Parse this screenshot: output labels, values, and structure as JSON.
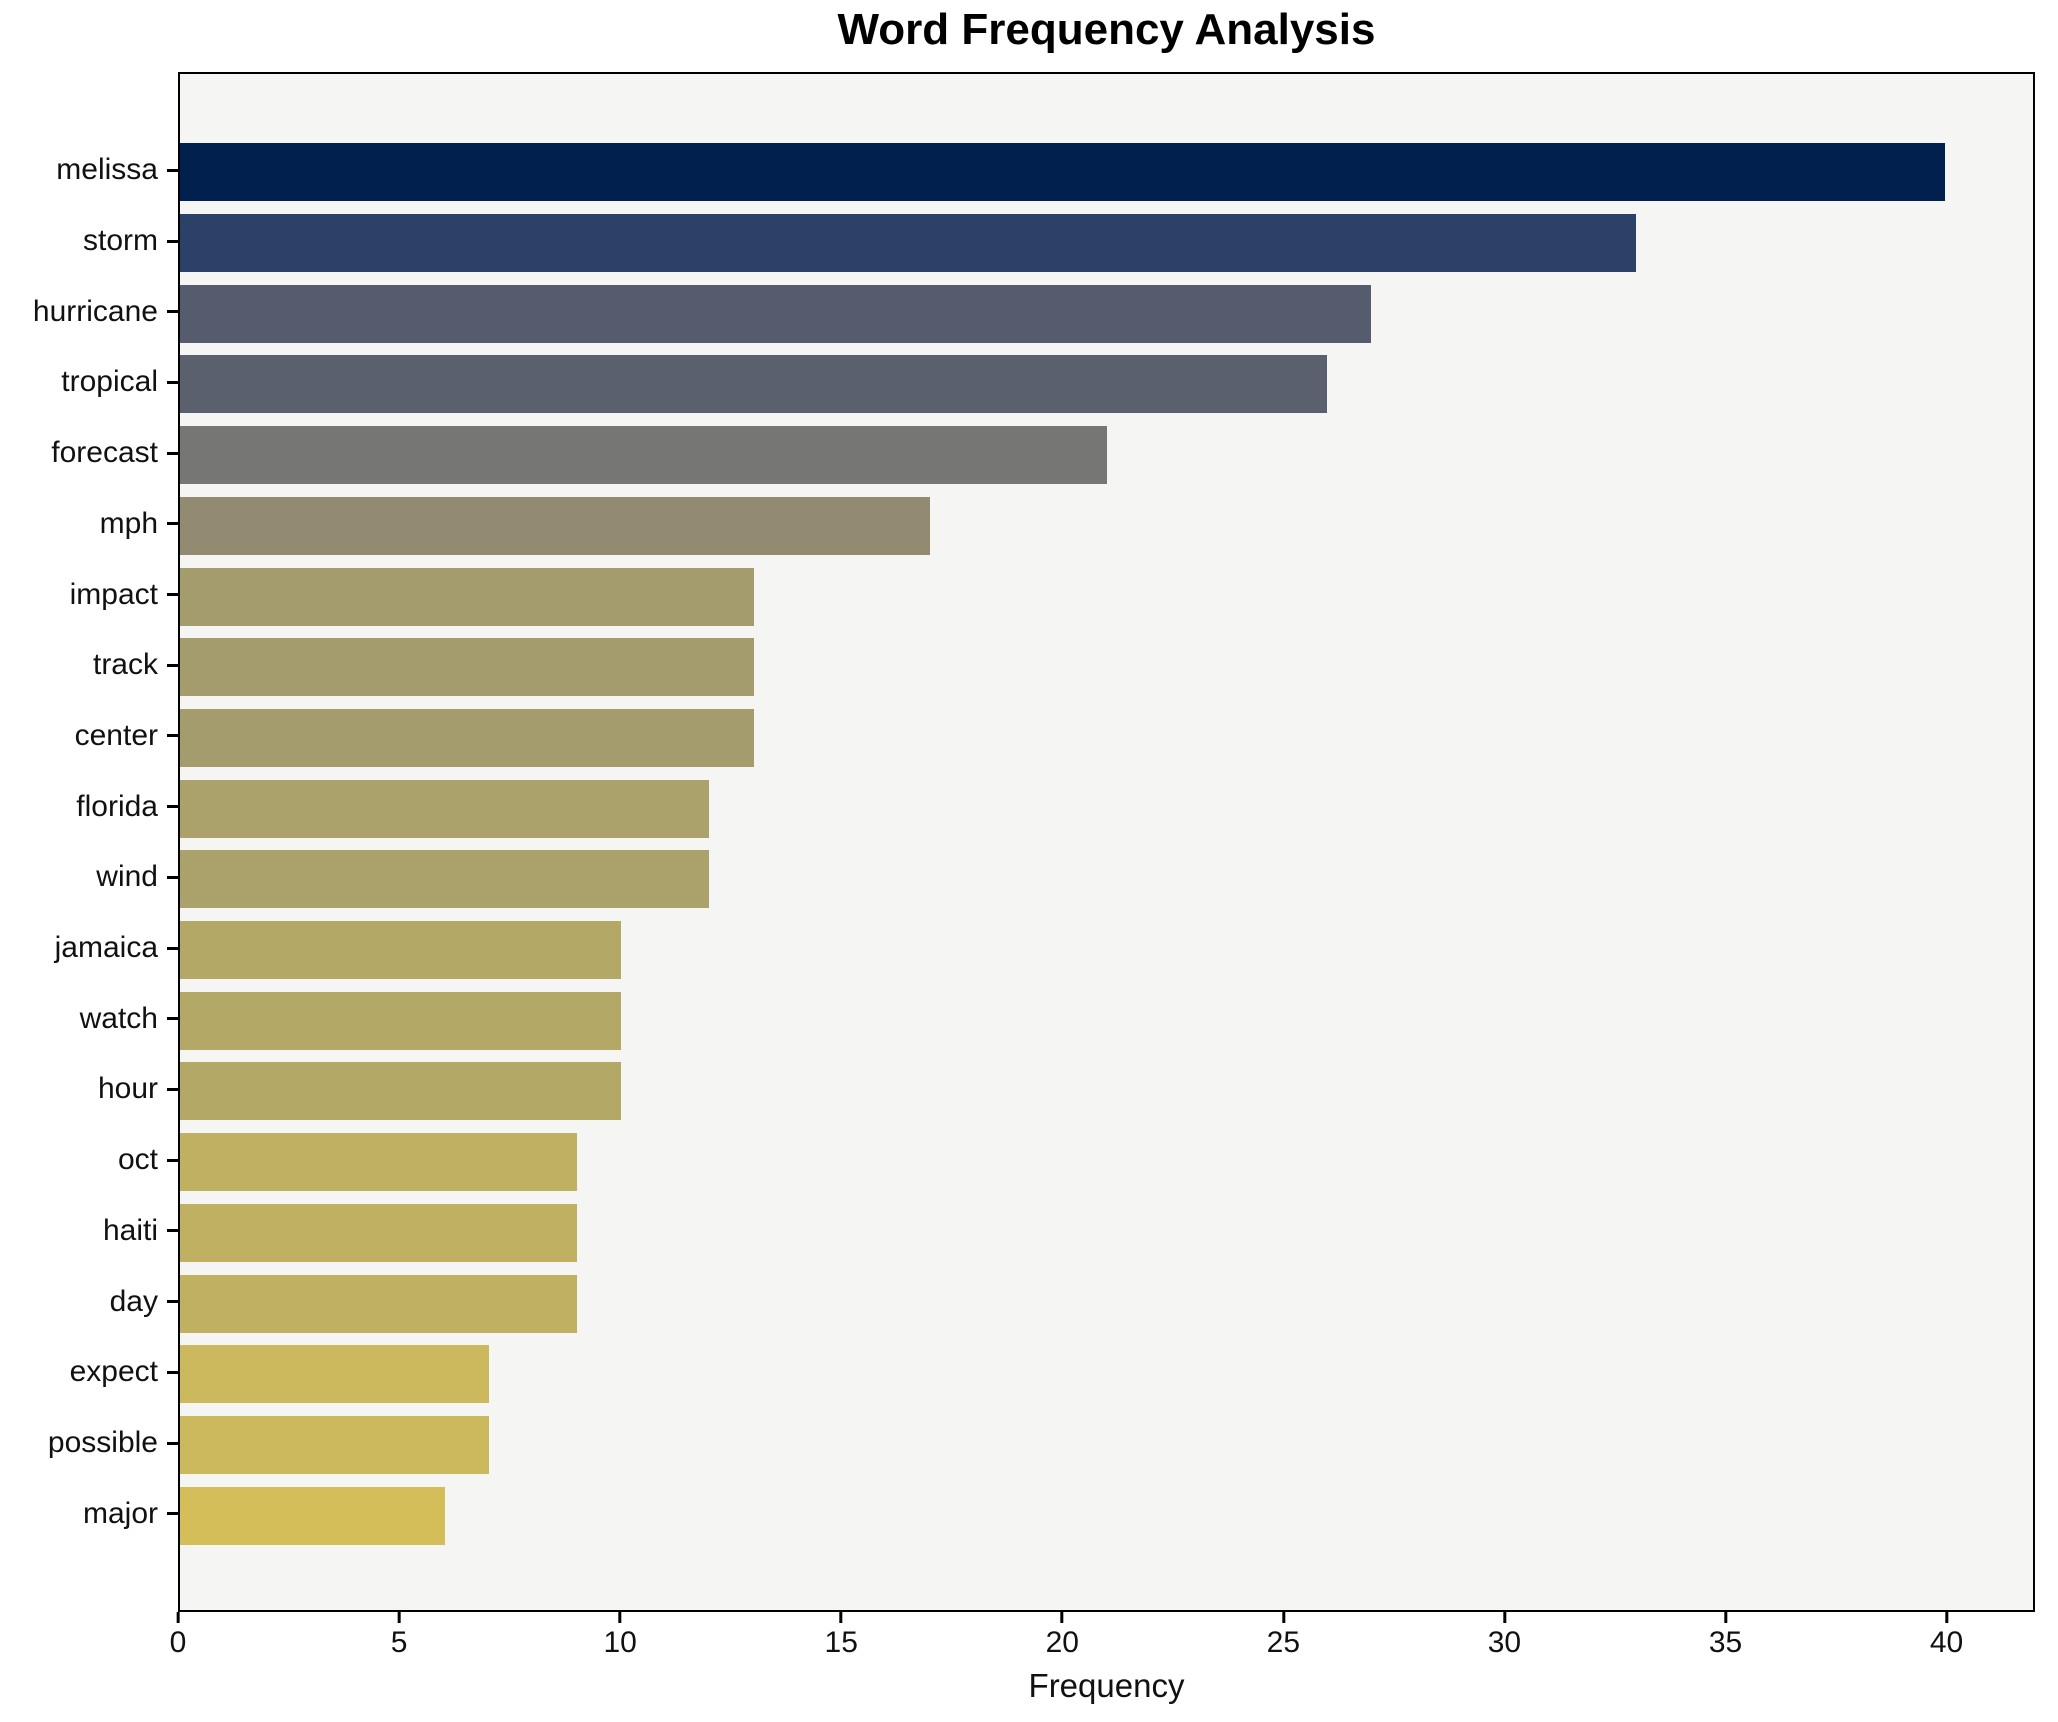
{
  "figure": {
    "background": "#ffffff",
    "plot_border_color": "#000000",
    "text_color": "#111111"
  },
  "chart_data": {
    "type": "bar",
    "orientation": "horizontal",
    "title": "Word Frequency Analysis",
    "xlabel": "Frequency",
    "ylabel": "",
    "categories": [
      "melissa",
      "storm",
      "hurricane",
      "tropical",
      "forecast",
      "mph",
      "impact",
      "track",
      "center",
      "florida",
      "wind",
      "jamaica",
      "watch",
      "hour",
      "oct",
      "haiti",
      "day",
      "expect",
      "possible",
      "major"
    ],
    "values": [
      40,
      33,
      27,
      26,
      21,
      17,
      13,
      13,
      13,
      12,
      12,
      10,
      10,
      10,
      9,
      9,
      9,
      7,
      7,
      6
    ],
    "bar_colors": [
      "#01204E",
      "#2C4167",
      "#555C6D",
      "#5A606E",
      "#767674",
      "#928A71",
      "#A59C6E",
      "#A59C6E",
      "#A59C6E",
      "#ABA16B",
      "#ABA16B",
      "#B3A866",
      "#B3A866",
      "#B3A866",
      "#BFB062",
      "#BFB062",
      "#BFB062",
      "#CCB95D",
      "#CCB95D",
      "#D3BE59"
    ],
    "xlim": [
      0,
      42
    ],
    "xticks": [
      0,
      5,
      10,
      15,
      20,
      25,
      30,
      35,
      40
    ],
    "plot_background": "#F5F5F3",
    "grid": false,
    "legend_position": "none",
    "colormap": "cividis"
  }
}
